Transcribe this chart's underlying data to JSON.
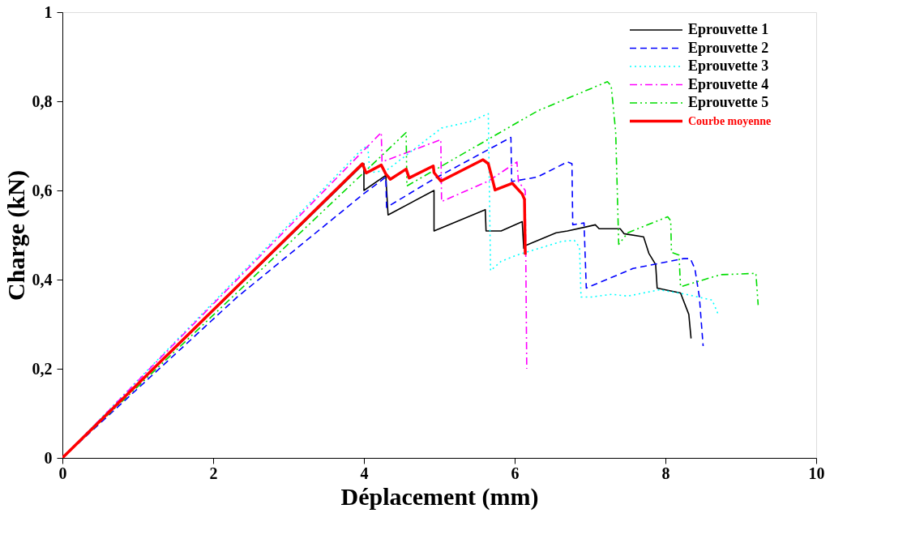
{
  "chart_data": {
    "type": "line",
    "xlabel": "Déplacement (mm)",
    "ylabel": "Charge (kN)",
    "xlim": [
      0,
      10
    ],
    "xticks": [
      0,
      2,
      4,
      6,
      8,
      10
    ],
    "ylim": [
      0,
      1
    ],
    "yticks": [
      0,
      {
        "value": 0.2,
        "label": "0,2"
      },
      {
        "value": 0.4,
        "label": "0,4"
      },
      {
        "value": 0.6,
        "label": "0,6"
      },
      {
        "value": 0.8,
        "label": "0,8"
      },
      1
    ],
    "grid": false,
    "legend": "top right",
    "marker": "none",
    "series": [
      {
        "name": "Eprouvette 1",
        "color": "#000000",
        "line_style": "solid",
        "x": [
          0,
          4.0,
          4.0,
          4.29,
          4.32,
          4.93,
          4.93,
          5.61,
          5.62,
          5.82,
          6.1,
          6.12,
          6.15,
          6.55,
          6.7,
          6.94,
          7.07,
          7.12,
          7.4,
          7.45,
          7.71,
          7.78,
          7.87,
          7.89,
          8.2,
          8.31,
          8.34
        ],
        "values": [
          0,
          0.66,
          0.6,
          0.634,
          0.545,
          0.6,
          0.509,
          0.557,
          0.509,
          0.509,
          0.53,
          0.47,
          0.477,
          0.505,
          0.509,
          0.518,
          0.523,
          0.514,
          0.514,
          0.503,
          0.496,
          0.459,
          0.434,
          0.381,
          0.37,
          0.322,
          0.268
        ]
      },
      {
        "name": "Eprouvette 2",
        "color": "#0000ff",
        "line_style": "dashed",
        "x": [
          0,
          2.32,
          3.97,
          4.29,
          4.3,
          4.92,
          5.95,
          5.96,
          6.3,
          6.7,
          6.76,
          6.77,
          6.92,
          6.95,
          7.57,
          8.24,
          8.33,
          8.39,
          8.45,
          8.5
        ],
        "values": [
          0,
          0.361,
          0.589,
          0.63,
          0.562,
          0.625,
          0.719,
          0.62,
          0.63,
          0.664,
          0.66,
          0.523,
          0.527,
          0.381,
          0.425,
          0.447,
          0.447,
          0.425,
          0.361,
          0.251
        ]
      },
      {
        "name": "Eprouvette 3",
        "color": "#00ffff",
        "line_style": "dotted",
        "x": [
          0,
          3.97,
          4.05,
          4.08,
          4.3,
          5.03,
          5.4,
          5.65,
          5.68,
          5.82,
          6.03,
          6.63,
          6.79,
          6.86,
          6.88,
          7.02,
          7.29,
          7.5,
          7.92,
          8.27,
          8.62,
          8.7
        ],
        "values": [
          0,
          0.692,
          0.7,
          0.64,
          0.645,
          0.74,
          0.754,
          0.772,
          0.42,
          0.441,
          0.455,
          0.486,
          0.488,
          0.473,
          0.361,
          0.361,
          0.367,
          0.363,
          0.377,
          0.367,
          0.354,
          0.322
        ]
      },
      {
        "name": "Eprouvette 4",
        "color": "#ff00ff",
        "line_style": "dashdot",
        "x": [
          0,
          4.23,
          4.24,
          5.02,
          5.03,
          5.65,
          6.03,
          6.05,
          6.14,
          6.16
        ],
        "values": [
          0,
          0.73,
          0.664,
          0.714,
          0.575,
          0.621,
          0.664,
          0.62,
          0.6,
          0.2
        ]
      },
      {
        "name": "Eprouvette 5",
        "color": "#00dd00",
        "line_style": "dashdotdot",
        "x": [
          0,
          4.56,
          4.57,
          6.31,
          7.23,
          7.28,
          7.34,
          7.38,
          7.5,
          8.03,
          8.07,
          8.08,
          8.18,
          8.2,
          8.73,
          9.2,
          9.23
        ],
        "values": [
          0,
          0.73,
          0.61,
          0.779,
          0.844,
          0.835,
          0.731,
          0.479,
          0.505,
          0.541,
          0.532,
          0.461,
          0.455,
          0.384,
          0.411,
          0.414,
          0.343
        ]
      },
      {
        "name": "Courbe moyenne",
        "color": "#ff0000",
        "line_style": "solid",
        "x": [
          0,
          3.98,
          4.03,
          4.23,
          4.29,
          4.35,
          4.56,
          4.6,
          4.92,
          4.93,
          5.02,
          5.58,
          5.65,
          5.7,
          5.74,
          5.97,
          6.1,
          6.13,
          6.14
        ],
        "values": [
          0,
          0.66,
          0.639,
          0.657,
          0.637,
          0.625,
          0.648,
          0.628,
          0.655,
          0.64,
          0.621,
          0.669,
          0.66,
          0.628,
          0.601,
          0.616,
          0.592,
          0.58,
          0.456
        ]
      }
    ]
  }
}
